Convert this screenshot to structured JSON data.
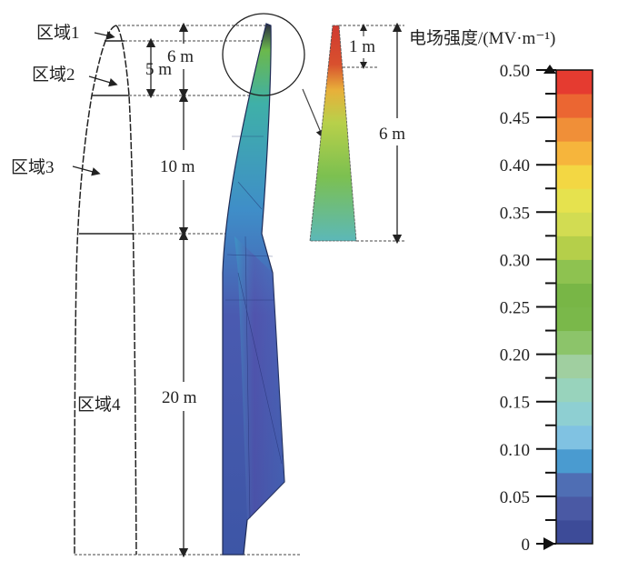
{
  "regions": {
    "region1": "区域1",
    "region2": "区域2",
    "region3": "区域3",
    "region4": "区域4"
  },
  "dimensions": {
    "d5": "5 m",
    "d6": "6 m",
    "d10": "10 m",
    "d20": "20 m",
    "inset_1": "1 m",
    "inset_6": "6 m"
  },
  "colorbar": {
    "title": "电场强度/(MV·m⁻¹)",
    "min": 0,
    "max": 0.5,
    "tick_labels": [
      "0",
      "0.05",
      "0.10",
      "0.15",
      "0.20",
      "0.25",
      "0.30",
      "0.35",
      "0.40",
      "0.45",
      "0.50"
    ],
    "band_colors_bottom_to_top": [
      "#3d4b98",
      "#4a59a4",
      "#4f6eb4",
      "#4a9bd0",
      "#80c2e2",
      "#8ecfd2",
      "#98d3bc",
      "#a0cfa0",
      "#8cc46a",
      "#7ab84a",
      "#78b646",
      "#8ec250",
      "#b5cf4a",
      "#d2dc52",
      "#e6e24e",
      "#f3d743",
      "#f6b53c",
      "#f08f38",
      "#eb6632",
      "#e53b30"
    ]
  },
  "colors": {
    "field_high": "#e53b30",
    "field_low": "#3d4b98",
    "outline": "#222222"
  }
}
